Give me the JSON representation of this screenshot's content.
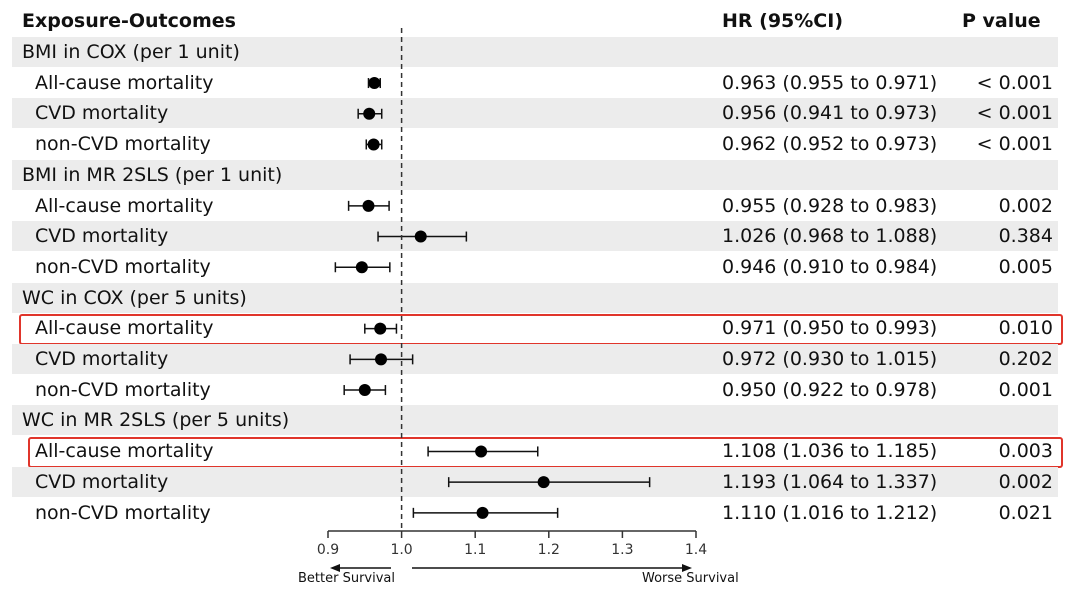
{
  "headers": {
    "exposure": "Exposure-Outcomes",
    "hr": "HR (95%CI)",
    "p": "P value"
  },
  "direction": {
    "left": "Better Survival",
    "right": "Worse Survival"
  },
  "colors": {
    "highlight": "#e0352b",
    "stripe": "#ececec"
  },
  "chart_data": {
    "type": "forest",
    "xlim": [
      0.9,
      1.4
    ],
    "ticks": [
      "0.9",
      "1.0",
      "1.1",
      "1.2",
      "1.3",
      "1.4"
    ],
    "reference_line": 1.0,
    "rows": [
      {
        "label": "BMI in COX (per 1 unit)",
        "group": true
      },
      {
        "label": "All-cause mortality",
        "hr": 0.963,
        "lo": 0.955,
        "hi": 0.971,
        "hr_text": "0.963 (0.955 to 0.971)",
        "p": "< 0.001"
      },
      {
        "label": "CVD mortality",
        "hr": 0.956,
        "lo": 0.941,
        "hi": 0.973,
        "hr_text": "0.956 (0.941 to 0.973)",
        "p": "< 0.001"
      },
      {
        "label": "non-CVD mortality",
        "hr": 0.962,
        "lo": 0.952,
        "hi": 0.973,
        "hr_text": "0.962 (0.952 to 0.973)",
        "p": "< 0.001"
      },
      {
        "label": "BMI in MR 2SLS (per 1 unit)",
        "group": true
      },
      {
        "label": "All-cause mortality",
        "hr": 0.955,
        "lo": 0.928,
        "hi": 0.983,
        "hr_text": "0.955 (0.928 to 0.983)",
        "p": "0.002"
      },
      {
        "label": "CVD mortality",
        "hr": 1.026,
        "lo": 0.968,
        "hi": 1.088,
        "hr_text": "1.026 (0.968 to 1.088)",
        "p": "0.384"
      },
      {
        "label": "non-CVD mortality",
        "hr": 0.946,
        "lo": 0.91,
        "hi": 0.984,
        "hr_text": "0.946 (0.910 to 0.984)",
        "p": "0.005"
      },
      {
        "label": "WC in COX (per 5 units)",
        "group": true
      },
      {
        "label": "All-cause mortality",
        "hr": 0.971,
        "lo": 0.95,
        "hi": 0.993,
        "hr_text": "0.971 (0.950 to 0.993)",
        "p": "0.010",
        "highlight": true
      },
      {
        "label": "CVD mortality",
        "hr": 0.972,
        "lo": 0.93,
        "hi": 1.015,
        "hr_text": "0.972 (0.930 to 1.015)",
        "p": "0.202"
      },
      {
        "label": "non-CVD mortality",
        "hr": 0.95,
        "lo": 0.922,
        "hi": 0.978,
        "hr_text": "0.950 (0.922 to 0.978)",
        "p": "0.001"
      },
      {
        "label": "WC in MR 2SLS (per 5 units)",
        "group": true
      },
      {
        "label": "All-cause mortality",
        "hr": 1.108,
        "lo": 1.036,
        "hi": 1.185,
        "hr_text": "1.108 (1.036 to 1.185)",
        "p": "0.003",
        "highlight": true
      },
      {
        "label": "CVD mortality",
        "hr": 1.193,
        "lo": 1.064,
        "hi": 1.337,
        "hr_text": "1.193 (1.064 to 1.337)",
        "p": "0.002"
      },
      {
        "label": "non-CVD mortality",
        "hr": 1.11,
        "lo": 1.016,
        "hi": 1.212,
        "hr_text": "1.110 (1.016 to 1.212)",
        "p": "0.021"
      }
    ]
  }
}
